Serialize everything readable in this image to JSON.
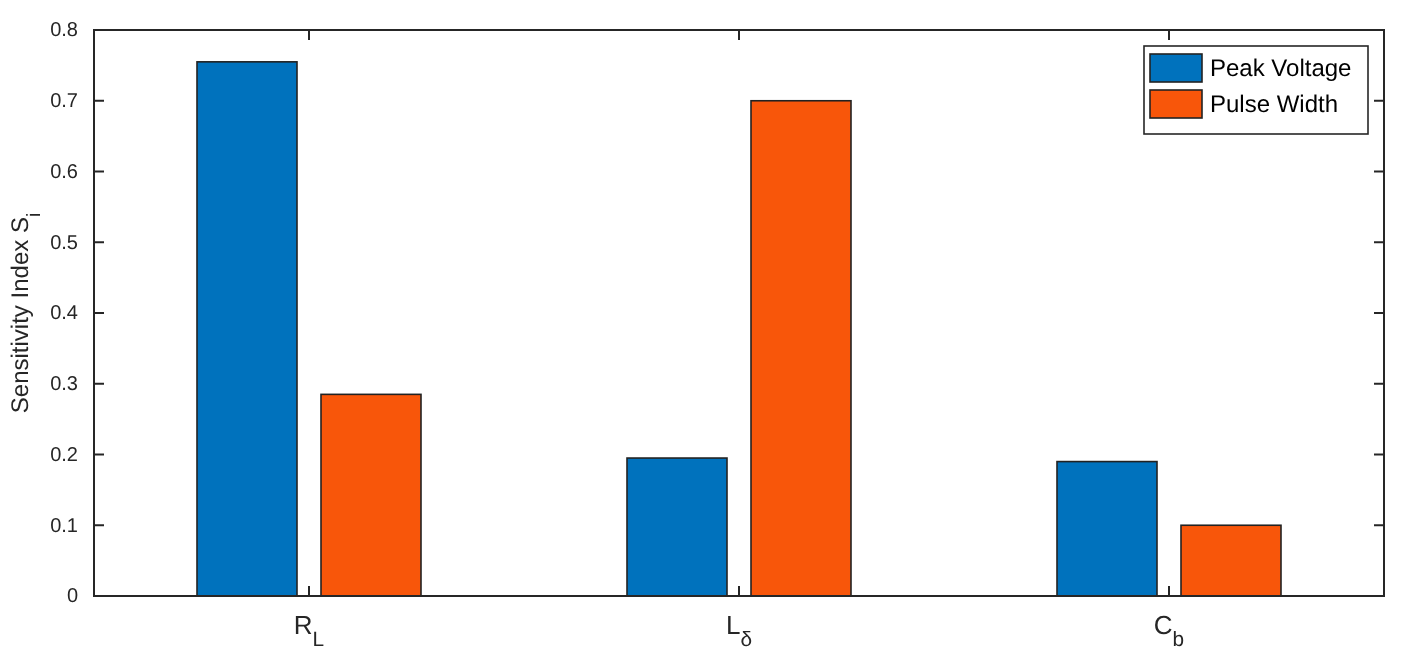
{
  "chart_data": {
    "type": "bar",
    "ylabel": "Sensitivity Index S$_{i}$",
    "categories": [
      "R$_{L}$",
      "L$_{δ}$",
      "C$_{b}$"
    ],
    "series": [
      {
        "name": "Peak Voltage",
        "color": "#0072bd",
        "values": [
          0.755,
          0.195,
          0.19
        ]
      },
      {
        "name": "Pulse Width",
        "color": "#f8560a",
        "values": [
          0.285,
          0.7,
          0.1
        ]
      }
    ],
    "ylim": [
      0,
      0.8
    ],
    "yticks": [
      0,
      0.1,
      0.2,
      0.3,
      0.4,
      0.5,
      0.6,
      0.7,
      0.8
    ],
    "legend": "top right",
    "grid": false
  }
}
